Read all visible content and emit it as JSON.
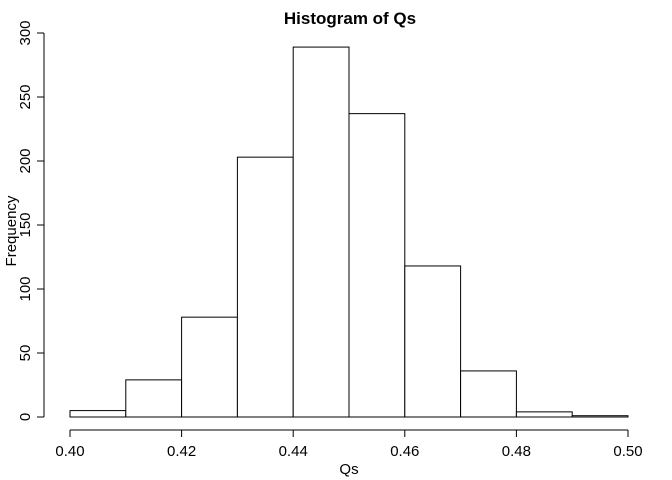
{
  "chart_data": {
    "type": "bar",
    "title": "Histogram of Qs",
    "xlabel": "Qs",
    "ylabel": "Frequency",
    "bins": [
      {
        "x0": 0.4,
        "x1": 0.41,
        "value": 5
      },
      {
        "x0": 0.41,
        "x1": 0.42,
        "value": 29
      },
      {
        "x0": 0.42,
        "x1": 0.43,
        "value": 78
      },
      {
        "x0": 0.43,
        "x1": 0.44,
        "value": 203
      },
      {
        "x0": 0.44,
        "x1": 0.45,
        "value": 289
      },
      {
        "x0": 0.45,
        "x1": 0.46,
        "value": 237
      },
      {
        "x0": 0.46,
        "x1": 0.47,
        "value": 118
      },
      {
        "x0": 0.47,
        "x1": 0.48,
        "value": 36
      },
      {
        "x0": 0.48,
        "x1": 0.49,
        "value": 4
      },
      {
        "x0": 0.49,
        "x1": 0.5,
        "value": 1
      }
    ],
    "xlim": [
      0.4,
      0.5
    ],
    "ylim": [
      0,
      300
    ],
    "x_ticks": [
      {
        "value": 0.4,
        "label": "0.40"
      },
      {
        "value": 0.42,
        "label": "0.42"
      },
      {
        "value": 0.44,
        "label": "0.44"
      },
      {
        "value": 0.46,
        "label": "0.46"
      },
      {
        "value": 0.48,
        "label": "0.48"
      },
      {
        "value": 0.5,
        "label": "0.50"
      }
    ],
    "y_ticks": [
      {
        "value": 0,
        "label": "0"
      },
      {
        "value": 50,
        "label": "50"
      },
      {
        "value": 100,
        "label": "100"
      },
      {
        "value": 150,
        "label": "150"
      },
      {
        "value": 200,
        "label": "200"
      },
      {
        "value": 250,
        "label": "250"
      },
      {
        "value": 300,
        "label": "300"
      }
    ],
    "grid": false,
    "legend": "none",
    "colors": {
      "bar_fill": "#ffffff",
      "bar_stroke": "#000000",
      "axis": "#000000"
    }
  }
}
